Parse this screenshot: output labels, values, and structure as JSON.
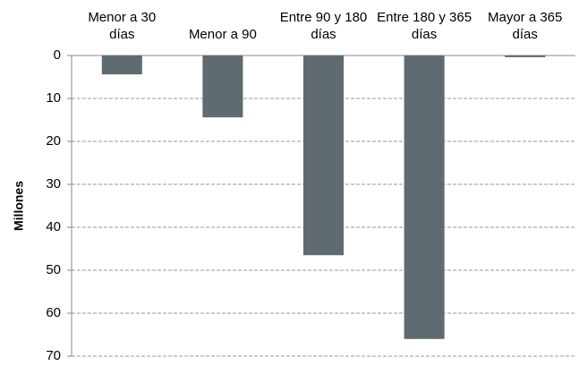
{
  "chart_data": {
    "type": "bar",
    "y_label": "Millones",
    "categories": [
      "Menor a 30 días",
      "Menor a 90",
      "Entre 90 y 180 días",
      "Entre 180 y 365 días",
      "Mayor a 365 días"
    ],
    "values": [
      4.4,
      14.4,
      46.5,
      66,
      0.4
    ],
    "color": "#5f6b70",
    "ylim": [
      0,
      70
    ],
    "yticks": [
      0,
      10,
      20,
      30,
      40,
      50,
      60,
      70
    ],
    "y_inverted": true,
    "grid": true,
    "category_axis_position": "top"
  }
}
